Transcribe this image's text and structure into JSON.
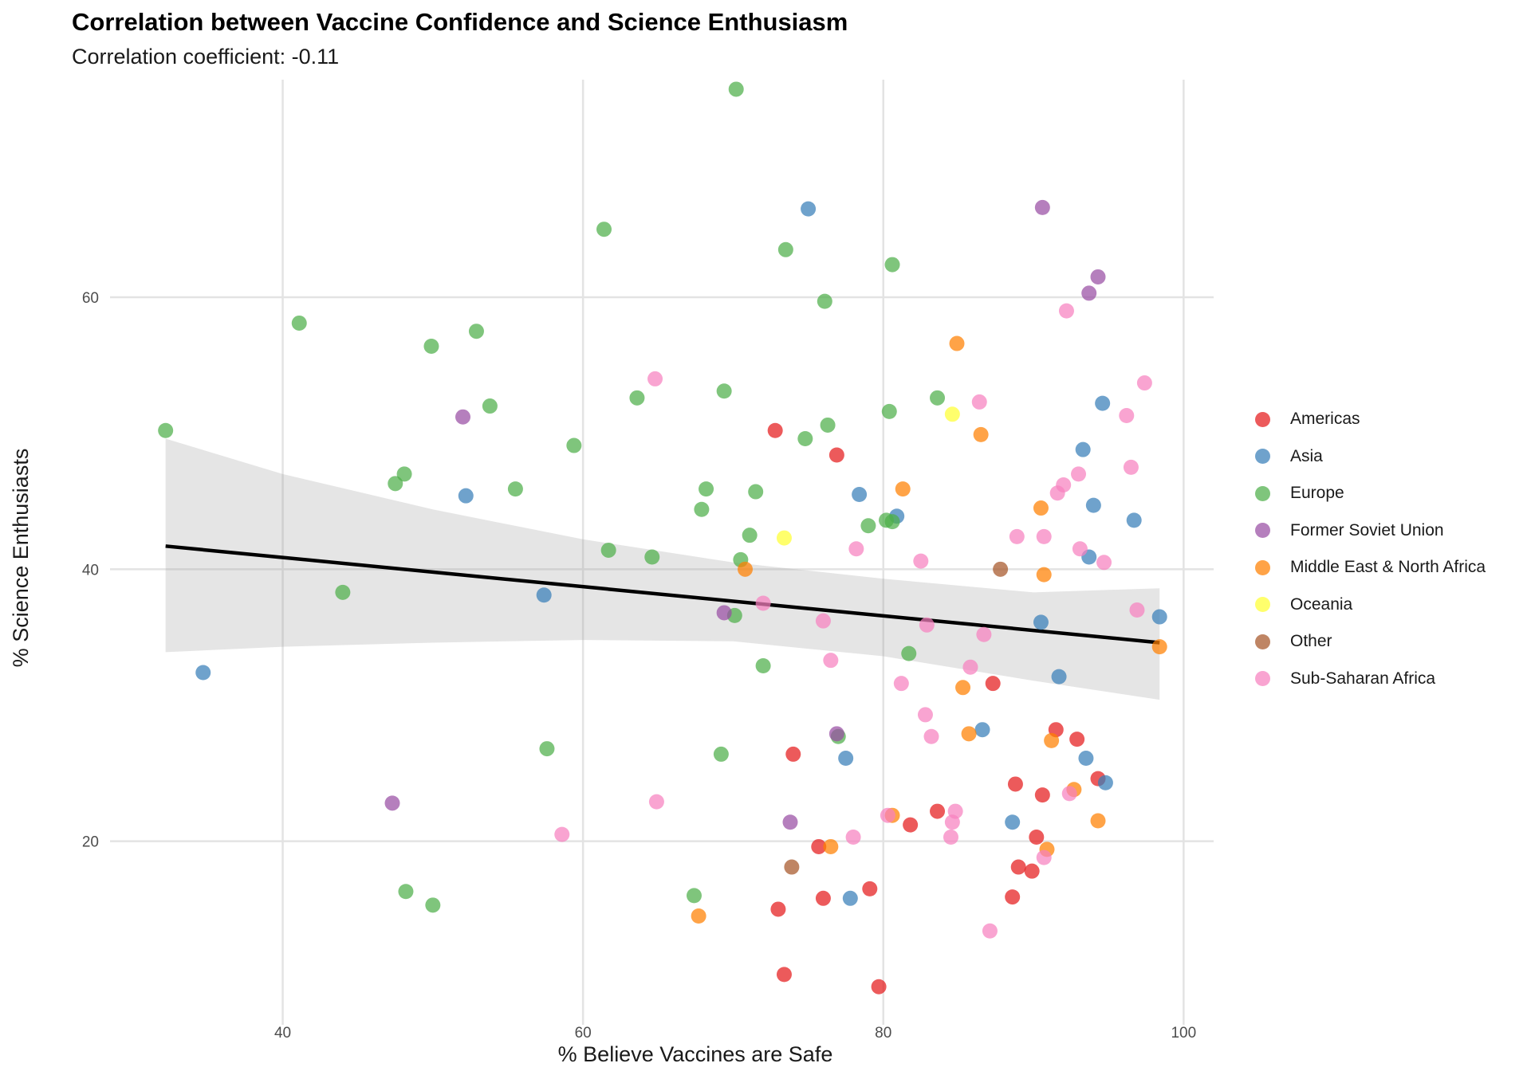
{
  "chart_data": {
    "type": "scatter",
    "title": "Correlation between Vaccine Confidence and Science Enthusiasm",
    "subtitle": "Correlation coefficient: -0.11",
    "xlabel": "% Believe Vaccines are Safe",
    "ylabel": "% Science Enthusiasts",
    "xlim": [
      28.5,
      102
    ],
    "ylim": [
      6.5,
      76
    ],
    "x_ticks": [
      40,
      60,
      80,
      100
    ],
    "y_ticks": [
      20,
      40,
      60
    ],
    "grid": true,
    "legend_position": "right",
    "trend_line": {
      "x": [
        32.2,
        98.4
      ],
      "y": [
        41.7,
        34.6
      ]
    },
    "confidence_band": {
      "x": [
        32.2,
        40,
        50,
        60,
        70,
        80,
        90,
        98.4
      ],
      "lower": [
        33.9,
        34.3,
        34.6,
        34.8,
        34.7,
        33.6,
        31.8,
        30.4
      ],
      "upper": [
        49.6,
        47.0,
        44.4,
        42.2,
        40.5,
        39.3,
        38.3,
        38.6
      ]
    },
    "series": [
      {
        "name": "Americas",
        "color": "#E41A1C",
        "points": [
          [
            72.8,
            50.2
          ],
          [
            76.9,
            48.4
          ],
          [
            87.3,
            31.6
          ],
          [
            91.5,
            28.2
          ],
          [
            92.9,
            27.5
          ],
          [
            74.0,
            26.4
          ],
          [
            94.3,
            24.6
          ],
          [
            88.8,
            24.2
          ],
          [
            90.6,
            23.4
          ],
          [
            83.6,
            22.2
          ],
          [
            81.8,
            21.2
          ],
          [
            90.2,
            20.3
          ],
          [
            75.7,
            19.6
          ],
          [
            89.0,
            18.1
          ],
          [
            89.9,
            17.8
          ],
          [
            79.1,
            16.5
          ],
          [
            76.0,
            15.8
          ],
          [
            88.6,
            15.9
          ],
          [
            73.0,
            15.0
          ],
          [
            73.4,
            10.2
          ],
          [
            79.7,
            9.3
          ]
        ]
      },
      {
        "name": "Asia",
        "color": "#377EB8",
        "points": [
          [
            75.0,
            66.5
          ],
          [
            94.6,
            52.2
          ],
          [
            93.3,
            48.8
          ],
          [
            94.0,
            44.7
          ],
          [
            96.7,
            43.6
          ],
          [
            78.4,
            45.5
          ],
          [
            80.9,
            43.9
          ],
          [
            52.2,
            45.4
          ],
          [
            93.7,
            40.9
          ],
          [
            57.4,
            38.1
          ],
          [
            90.5,
            36.1
          ],
          [
            98.4,
            36.5
          ],
          [
            34.7,
            32.4
          ],
          [
            91.7,
            32.1
          ],
          [
            86.6,
            28.2
          ],
          [
            93.5,
            26.1
          ],
          [
            77.5,
            26.1
          ],
          [
            94.8,
            24.3
          ],
          [
            88.6,
            21.4
          ],
          [
            77.8,
            15.8
          ]
        ]
      },
      {
        "name": "Europe",
        "color": "#4DAF4A",
        "points": [
          [
            70.2,
            75.3
          ],
          [
            61.4,
            65.0
          ],
          [
            73.5,
            63.5
          ],
          [
            80.6,
            62.4
          ],
          [
            76.1,
            59.7
          ],
          [
            41.1,
            58.1
          ],
          [
            52.9,
            57.5
          ],
          [
            49.9,
            56.4
          ],
          [
            83.6,
            52.6
          ],
          [
            63.6,
            52.6
          ],
          [
            69.4,
            53.1
          ],
          [
            53.8,
            52.0
          ],
          [
            80.4,
            51.6
          ],
          [
            76.3,
            50.6
          ],
          [
            74.8,
            49.6
          ],
          [
            59.4,
            49.1
          ],
          [
            32.2,
            50.2
          ],
          [
            48.1,
            47.0
          ],
          [
            47.5,
            46.3
          ],
          [
            55.5,
            45.9
          ],
          [
            68.2,
            45.9
          ],
          [
            71.5,
            45.7
          ],
          [
            67.9,
            44.4
          ],
          [
            80.2,
            43.6
          ],
          [
            80.6,
            43.5
          ],
          [
            79.0,
            43.2
          ],
          [
            71.1,
            42.5
          ],
          [
            61.7,
            41.4
          ],
          [
            64.6,
            40.9
          ],
          [
            70.5,
            40.7
          ],
          [
            44.0,
            38.3
          ],
          [
            70.1,
            36.6
          ],
          [
            81.7,
            33.8
          ],
          [
            72.0,
            32.9
          ],
          [
            57.6,
            26.8
          ],
          [
            69.2,
            26.4
          ],
          [
            77.0,
            27.7
          ],
          [
            48.2,
            16.3
          ],
          [
            50.0,
            15.3
          ],
          [
            67.4,
            16.0
          ]
        ]
      },
      {
        "name": "Former Soviet Union",
        "color": "#984EA3",
        "points": [
          [
            90.6,
            66.6
          ],
          [
            94.3,
            61.5
          ],
          [
            93.7,
            60.3
          ],
          [
            52.0,
            51.2
          ],
          [
            69.4,
            36.8
          ],
          [
            76.9,
            27.9
          ],
          [
            47.3,
            22.8
          ],
          [
            73.8,
            21.4
          ]
        ]
      },
      {
        "name": "Middle East & North Africa",
        "color": "#FF7F00",
        "points": [
          [
            84.9,
            56.6
          ],
          [
            86.5,
            49.9
          ],
          [
            81.3,
            45.9
          ],
          [
            90.5,
            44.5
          ],
          [
            70.8,
            40.0
          ],
          [
            90.7,
            39.6
          ],
          [
            98.4,
            34.3
          ],
          [
            85.3,
            31.3
          ],
          [
            91.2,
            27.4
          ],
          [
            85.7,
            27.9
          ],
          [
            92.7,
            23.8
          ],
          [
            94.3,
            21.5
          ],
          [
            80.6,
            21.9
          ],
          [
            76.5,
            19.6
          ],
          [
            90.9,
            19.4
          ],
          [
            67.7,
            14.5
          ]
        ]
      },
      {
        "name": "Oceania",
        "color": "#FFFF33",
        "points": [
          [
            84.6,
            51.4
          ],
          [
            73.4,
            42.3
          ]
        ]
      },
      {
        "name": "Other",
        "color": "#A65628",
        "points": [
          [
            87.8,
            40.0
          ],
          [
            73.9,
            18.1
          ]
        ]
      },
      {
        "name": "Sub-Saharan Africa",
        "color": "#F781BF",
        "points": [
          [
            92.2,
            59.0
          ],
          [
            97.4,
            53.7
          ],
          [
            64.8,
            54.0
          ],
          [
            86.4,
            52.3
          ],
          [
            96.2,
            51.3
          ],
          [
            96.5,
            47.5
          ],
          [
            93.0,
            47.0
          ],
          [
            92.0,
            46.2
          ],
          [
            91.6,
            45.6
          ],
          [
            88.9,
            42.4
          ],
          [
            90.7,
            42.4
          ],
          [
            78.2,
            41.5
          ],
          [
            93.1,
            41.5
          ],
          [
            82.5,
            40.6
          ],
          [
            94.7,
            40.5
          ],
          [
            72.0,
            37.5
          ],
          [
            96.9,
            37.0
          ],
          [
            76.0,
            36.2
          ],
          [
            82.9,
            35.9
          ],
          [
            86.7,
            35.2
          ],
          [
            76.5,
            33.3
          ],
          [
            85.8,
            32.8
          ],
          [
            81.2,
            31.6
          ],
          [
            82.8,
            29.3
          ],
          [
            83.2,
            27.7
          ],
          [
            92.4,
            23.5
          ],
          [
            64.9,
            22.9
          ],
          [
            84.8,
            22.2
          ],
          [
            80.3,
            21.9
          ],
          [
            84.6,
            21.4
          ],
          [
            58.6,
            20.5
          ],
          [
            78.0,
            20.3
          ],
          [
            84.5,
            20.3
          ],
          [
            90.7,
            18.8
          ],
          [
            87.1,
            13.4
          ]
        ]
      }
    ]
  }
}
